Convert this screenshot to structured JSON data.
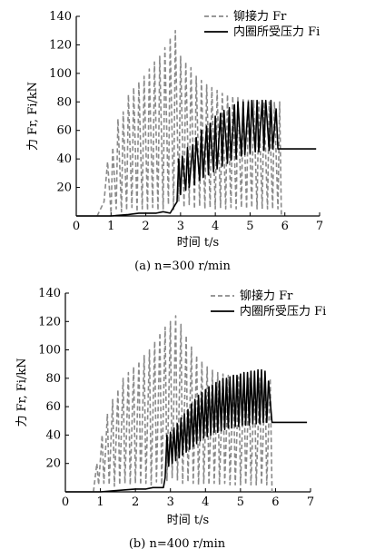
{
  "figure": {
    "caption_a": "(a) n=300 r/min",
    "caption_b": "(b) n=400 r/min"
  },
  "chart_data": [
    {
      "type": "line",
      "xlabel": "时间 t/s",
      "ylabel": "力 Fr, Fi/kN",
      "xlim": [
        0,
        7
      ],
      "ylim": [
        0,
        140
      ],
      "xticks": [
        "0",
        "1",
        "2",
        "3",
        "4",
        "5",
        "6",
        "7"
      ],
      "yticks": [
        "20",
        "40",
        "60",
        "80",
        "100",
        "120",
        "140"
      ],
      "legend": [
        "铆接力 Fr",
        "内圈所受压力 Fi"
      ],
      "legend_position": "top-right",
      "series": [
        {
          "name": "铆接力 Fr",
          "style": "dashed",
          "color": "#8a8a8a",
          "x": [
            0.6,
            0.8,
            0.9,
            1.0,
            1.05,
            1.15,
            1.2,
            1.3,
            1.35,
            1.45,
            1.5,
            1.6,
            1.65,
            1.75,
            1.8,
            1.9,
            1.95,
            2.05,
            2.1,
            2.2,
            2.25,
            2.35,
            2.4,
            2.5,
            2.55,
            2.65,
            2.7,
            2.8,
            2.85,
            2.95,
            3.0,
            3.1,
            3.15,
            3.25,
            3.3,
            3.4,
            3.45,
            3.55,
            3.6,
            3.7,
            3.75,
            3.85,
            3.9,
            4.0,
            4.05,
            4.15,
            4.2,
            4.3,
            4.35,
            4.45,
            4.5,
            4.6,
            4.65,
            4.75,
            4.8,
            4.9,
            4.95,
            5.05,
            5.1,
            5.2,
            5.25,
            5.35,
            5.4,
            5.5,
            5.55,
            5.65,
            5.7,
            5.8,
            5.85,
            5.9
          ],
          "y": [
            0,
            10,
            38,
            2,
            48,
            5,
            68,
            3,
            73,
            4,
            85,
            6,
            90,
            3,
            94,
            5,
            98,
            4,
            103,
            6,
            108,
            4,
            112,
            5,
            118,
            8,
            125,
            4,
            130,
            10,
            112,
            6,
            108,
            8,
            104,
            5,
            98,
            7,
            95,
            5,
            92,
            6,
            90,
            5,
            88,
            6,
            86,
            5,
            85,
            6,
            84,
            5,
            83,
            6,
            82,
            5,
            82,
            6,
            81,
            5,
            80,
            5,
            80,
            5,
            80,
            5,
            80,
            5,
            80,
            0
          ]
        },
        {
          "name": "内圈所受压力 Fi",
          "style": "solid",
          "color": "#000000",
          "x": [
            0.0,
            1.0,
            1.5,
            1.8,
            2.0,
            2.3,
            2.5,
            2.7,
            2.85,
            2.9,
            2.95,
            3.0,
            3.05,
            3.15,
            3.2,
            3.25,
            3.35,
            3.4,
            3.45,
            3.55,
            3.6,
            3.65,
            3.75,
            3.8,
            3.85,
            3.95,
            4.0,
            4.05,
            4.15,
            4.2,
            4.25,
            4.35,
            4.4,
            4.45,
            4.55,
            4.6,
            4.65,
            4.75,
            4.8,
            4.85,
            4.95,
            5.0,
            5.05,
            5.15,
            5.2,
            5.25,
            5.35,
            5.4,
            5.45,
            5.55,
            5.6,
            5.65,
            5.75,
            5.8,
            5.9,
            6.5,
            6.9
          ],
          "y": [
            0,
            0,
            1,
            2,
            2,
            2,
            3,
            2,
            8,
            10,
            40,
            15,
            42,
            18,
            48,
            20,
            50,
            22,
            55,
            25,
            60,
            27,
            63,
            29,
            65,
            31,
            70,
            33,
            72,
            35,
            74,
            37,
            76,
            39,
            78,
            40,
            80,
            42,
            80,
            43,
            80,
            44,
            81,
            45,
            81,
            45,
            81,
            46,
            81,
            46,
            81,
            47,
            75,
            47,
            47,
            47,
            47
          ]
        }
      ]
    },
    {
      "type": "line",
      "xlabel": "时间 t/s",
      "ylabel": "力 Fr, Fi/kN",
      "xlim": [
        0,
        7
      ],
      "ylim": [
        0,
        140
      ],
      "xticks": [
        "0",
        "1",
        "2",
        "3",
        "4",
        "5",
        "6",
        "7"
      ],
      "yticks": [
        "20",
        "40",
        "60",
        "80",
        "100",
        "120",
        "140"
      ],
      "legend": [
        "铆接力 Fr",
        "内圈所受压力 Fi"
      ],
      "legend_position": "top-right",
      "series": [
        {
          "name": "铆接力 Fr",
          "style": "dashed",
          "color": "#8a8a8a",
          "x": [
            0.8,
            0.9,
            0.95,
            1.05,
            1.1,
            1.2,
            1.25,
            1.35,
            1.4,
            1.5,
            1.55,
            1.65,
            1.7,
            1.8,
            1.85,
            1.95,
            2.0,
            2.1,
            2.15,
            2.25,
            2.3,
            2.4,
            2.45,
            2.55,
            2.6,
            2.7,
            2.75,
            2.85,
            2.9,
            3.0,
            3.05,
            3.15,
            3.2,
            3.3,
            3.35,
            3.45,
            3.5,
            3.6,
            3.65,
            3.75,
            3.8,
            3.9,
            3.95,
            4.05,
            4.1,
            4.2,
            4.25,
            4.35,
            4.4,
            4.5,
            4.55,
            4.65,
            4.7,
            4.8,
            4.85,
            4.95,
            5.0,
            5.1,
            5.15,
            5.25,
            5.3,
            5.4,
            5.45,
            5.55,
            5.6,
            5.7,
            5.75,
            5.85,
            5.9
          ],
          "y": [
            0,
            20,
            5,
            40,
            6,
            55,
            5,
            65,
            4,
            72,
            5,
            80,
            6,
            84,
            5,
            88,
            6,
            92,
            5,
            96,
            6,
            100,
            5,
            106,
            7,
            112,
            5,
            116,
            8,
            120,
            10,
            124,
            8,
            118,
            6,
            110,
            7,
            102,
            6,
            96,
            5,
            92,
            6,
            88,
            5,
            86,
            6,
            84,
            5,
            83,
            6,
            82,
            5,
            82,
            5,
            81,
            5,
            81,
            5,
            80,
            5,
            80,
            5,
            80,
            5,
            80,
            5,
            80,
            0
          ]
        },
        {
          "name": "内圈所受压力 Fi",
          "style": "solid",
          "color": "#000000",
          "x": [
            0.0,
            1.0,
            1.5,
            2.0,
            2.3,
            2.5,
            2.7,
            2.8,
            2.85,
            2.9,
            2.95,
            3.0,
            3.05,
            3.1,
            3.15,
            3.2,
            3.25,
            3.3,
            3.35,
            3.4,
            3.45,
            3.5,
            3.55,
            3.6,
            3.65,
            3.7,
            3.75,
            3.8,
            3.85,
            3.9,
            3.95,
            4.0,
            4.05,
            4.1,
            4.15,
            4.2,
            4.25,
            4.3,
            4.35,
            4.4,
            4.45,
            4.5,
            4.55,
            4.6,
            4.65,
            4.7,
            4.75,
            4.8,
            4.85,
            4.9,
            4.95,
            5.0,
            5.05,
            5.1,
            5.15,
            5.2,
            5.25,
            5.3,
            5.35,
            5.4,
            5.45,
            5.5,
            5.55,
            5.6,
            5.65,
            5.7,
            5.75,
            5.8,
            5.9,
            6.5,
            6.9
          ],
          "y": [
            0,
            0,
            1,
            2,
            2,
            3,
            3,
            3,
            10,
            40,
            18,
            42,
            20,
            45,
            22,
            48,
            24,
            52,
            26,
            55,
            28,
            58,
            30,
            62,
            32,
            65,
            34,
            68,
            36,
            70,
            38,
            72,
            39,
            74,
            40,
            75,
            42,
            77,
            42,
            78,
            43,
            80,
            44,
            80,
            45,
            81,
            45,
            82,
            46,
            82,
            46,
            83,
            47,
            84,
            47,
            84,
            47,
            85,
            48,
            85,
            48,
            86,
            48,
            86,
            49,
            85,
            49,
            78,
            49,
            49,
            49
          ]
        }
      ]
    }
  ]
}
